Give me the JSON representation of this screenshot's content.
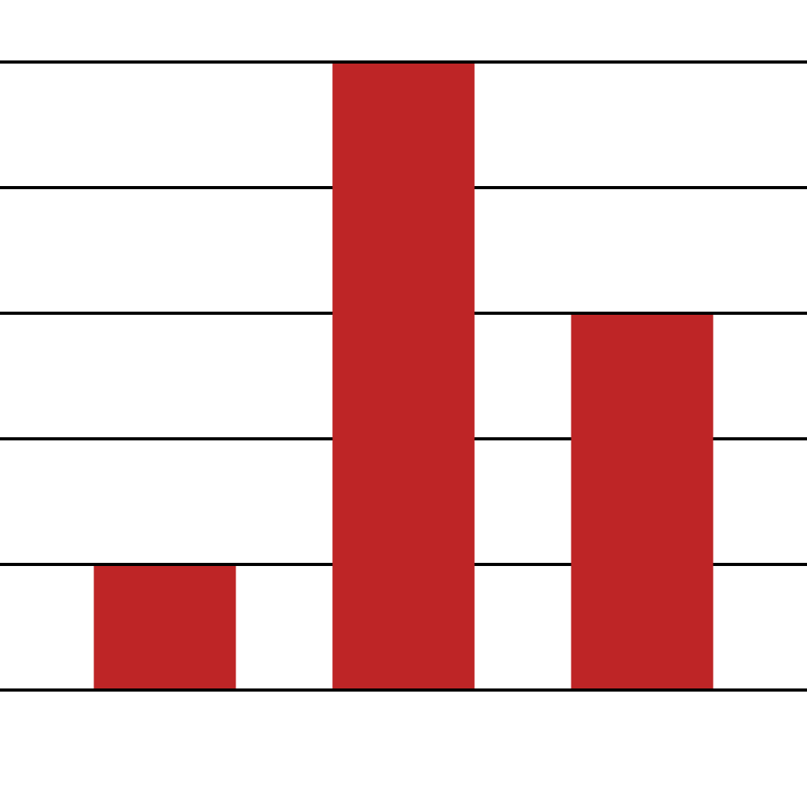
{
  "chart_data": {
    "type": "bar",
    "categories": [
      "",
      "",
      ""
    ],
    "values": [
      1,
      5,
      3
    ],
    "ylim": [
      0,
      5
    ],
    "y_ticks": [
      0,
      1,
      2,
      3,
      4,
      5
    ],
    "grid": "horizontal",
    "legend": "none",
    "colors": {
      "bar": "#BE2526",
      "grid": "#000000",
      "background": "#FFFFFF"
    }
  }
}
